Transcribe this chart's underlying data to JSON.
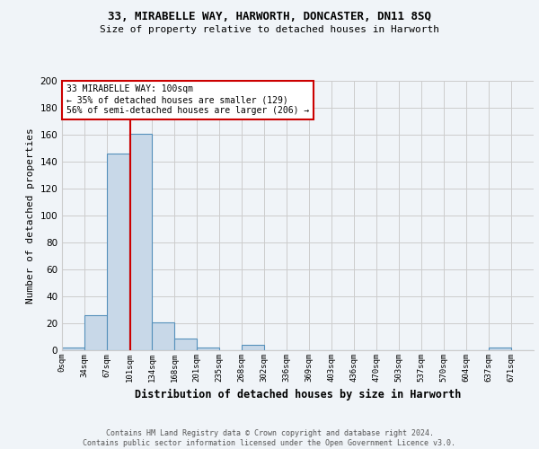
{
  "title": "33, MIRABELLE WAY, HARWORTH, DONCASTER, DN11 8SQ",
  "subtitle": "Size of property relative to detached houses in Harworth",
  "xlabel": "Distribution of detached houses by size in Harworth",
  "ylabel": "Number of detached properties",
  "footer_line1": "Contains HM Land Registry data © Crown copyright and database right 2024.",
  "footer_line2": "Contains public sector information licensed under the Open Government Licence v3.0.",
  "bin_labels": [
    "0sqm",
    "34sqm",
    "67sqm",
    "101sqm",
    "134sqm",
    "168sqm",
    "201sqm",
    "235sqm",
    "268sqm",
    "302sqm",
    "336sqm",
    "369sqm",
    "403sqm",
    "436sqm",
    "470sqm",
    "503sqm",
    "537sqm",
    "570sqm",
    "604sqm",
    "637sqm",
    "671sqm"
  ],
  "bar_heights": [
    2,
    26,
    146,
    161,
    21,
    9,
    2,
    0,
    4,
    0,
    0,
    0,
    0,
    0,
    0,
    0,
    0,
    0,
    0,
    2,
    0
  ],
  "bar_color": "#c8d8e8",
  "bar_edgecolor": "#5590bb",
  "annotation_box_text": "33 MIRABELLE WAY: 100sqm\n← 35% of detached houses are smaller (129)\n56% of semi-detached houses are larger (206) →",
  "annotation_box_color": "#ffffff",
  "annotation_box_edgecolor": "#cc0000",
  "vline_x": 100,
  "vline_color": "#cc0000",
  "ylim": [
    0,
    200
  ],
  "yticks": [
    0,
    20,
    40,
    60,
    80,
    100,
    120,
    140,
    160,
    180,
    200
  ],
  "grid_color": "#cccccc",
  "background_color": "#f0f4f8",
  "bin_width": 33
}
